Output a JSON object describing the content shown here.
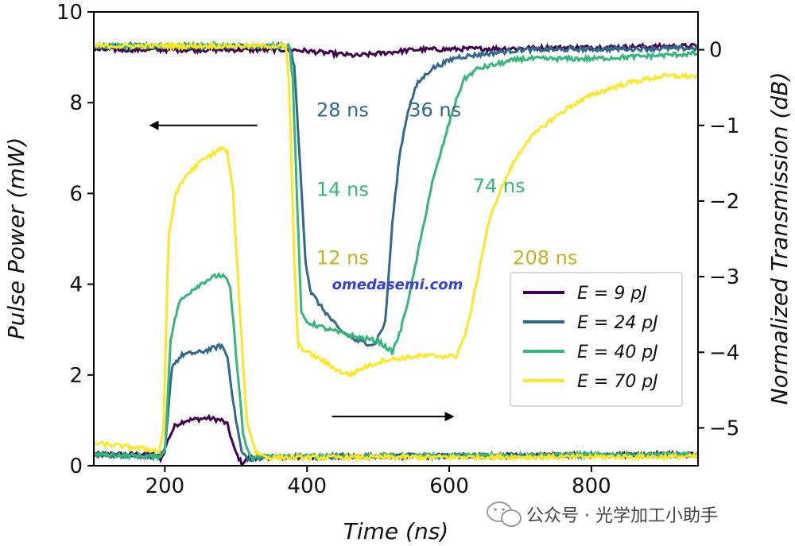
{
  "chart_data": {
    "type": "line",
    "xlabel": "Time (ns)",
    "ylabel_left": "Pulse Power (mW)",
    "ylabel_right": "Normalized Transmission (dB)",
    "xlim": [
      100,
      950
    ],
    "ylim_left": [
      0,
      10
    ],
    "ylim_right": [
      -5.5,
      0.5
    ],
    "x_ticks": [
      200,
      400,
      600,
      800
    ],
    "y_ticks_left": [
      0,
      2,
      4,
      6,
      8,
      10
    ],
    "y_ticks_right": [
      0,
      -1,
      -2,
      -3,
      -4,
      -5
    ],
    "x_tick_labels": [
      "200",
      "400",
      "600",
      "800"
    ],
    "y_tick_labels_left": [
      "0",
      "2",
      "4",
      "6",
      "8",
      "10"
    ],
    "y_tick_labels_right": [
      "0",
      "−1",
      "−2",
      "−3",
      "−4",
      "−5"
    ],
    "series": [
      {
        "name": "E = 9 pJ",
        "color": "#440154",
        "pulse_mW": [
          [
            100,
            0.25
          ],
          [
            185,
            0.25
          ],
          [
            195,
            0.15
          ],
          [
            205,
            0.6
          ],
          [
            215,
            0.9
          ],
          [
            230,
            1.0
          ],
          [
            260,
            1.05
          ],
          [
            280,
            1.0
          ],
          [
            288,
            0.9
          ],
          [
            298,
            0.35
          ],
          [
            308,
            0.05
          ],
          [
            320,
            0.18
          ],
          [
            500,
            0.2
          ],
          [
            700,
            0.22
          ],
          [
            950,
            0.25
          ]
        ],
        "transmission_dB": [
          [
            100,
            0.0
          ],
          [
            380,
            0.0
          ],
          [
            470,
            -0.08
          ],
          [
            550,
            0.0
          ],
          [
            700,
            0.02
          ],
          [
            950,
            0.05
          ]
        ]
      },
      {
        "name": "E = 24 pJ",
        "color": "#31688e",
        "pulse_mW": [
          [
            100,
            0.25
          ],
          [
            190,
            0.2
          ],
          [
            200,
            0.3
          ],
          [
            210,
            2.2
          ],
          [
            225,
            2.45
          ],
          [
            250,
            2.5
          ],
          [
            270,
            2.6
          ],
          [
            280,
            2.65
          ],
          [
            288,
            2.4
          ],
          [
            298,
            1.2
          ],
          [
            308,
            0.3
          ],
          [
            320,
            0.1
          ],
          [
            340,
            0.2
          ],
          [
            950,
            0.25
          ]
        ],
        "transmission_dB": [
          [
            100,
            0.05
          ],
          [
            375,
            0.05
          ],
          [
            382,
            -0.2
          ],
          [
            390,
            -1.5
          ],
          [
            398,
            -2.8
          ],
          [
            405,
            -3.2
          ],
          [
            420,
            -3.4
          ],
          [
            445,
            -3.7
          ],
          [
            470,
            -3.85
          ],
          [
            495,
            -3.9
          ],
          [
            510,
            -3.6
          ],
          [
            520,
            -2.3
          ],
          [
            530,
            -1.4
          ],
          [
            542,
            -0.8
          ],
          [
            555,
            -0.45
          ],
          [
            575,
            -0.25
          ],
          [
            610,
            -0.1
          ],
          [
            700,
            0.0
          ],
          [
            950,
            0.02
          ]
        ]
      },
      {
        "name": "E = 40 pJ",
        "color": "#35b779",
        "pulse_mW": [
          [
            100,
            0.25
          ],
          [
            190,
            0.2
          ],
          [
            200,
            0.3
          ],
          [
            208,
            2.8
          ],
          [
            220,
            3.6
          ],
          [
            240,
            3.9
          ],
          [
            260,
            4.1
          ],
          [
            275,
            4.2
          ],
          [
            285,
            4.15
          ],
          [
            292,
            3.9
          ],
          [
            300,
            2.5
          ],
          [
            310,
            0.7
          ],
          [
            320,
            0.15
          ],
          [
            330,
            0.2
          ],
          [
            950,
            0.25
          ]
        ],
        "transmission_dB": [
          [
            100,
            0.05
          ],
          [
            375,
            0.05
          ],
          [
            380,
            -0.4
          ],
          [
            386,
            -2.0
          ],
          [
            392,
            -3.5
          ],
          [
            400,
            -3.6
          ],
          [
            430,
            -3.7
          ],
          [
            470,
            -3.8
          ],
          [
            500,
            -3.85
          ],
          [
            520,
            -4.0
          ],
          [
            532,
            -3.7
          ],
          [
            545,
            -3.2
          ],
          [
            560,
            -2.5
          ],
          [
            575,
            -1.8
          ],
          [
            590,
            -1.3
          ],
          [
            605,
            -0.8
          ],
          [
            620,
            -0.4
          ],
          [
            640,
            -0.25
          ],
          [
            700,
            -0.12
          ],
          [
            800,
            -0.12
          ],
          [
            950,
            -0.05
          ]
        ]
      },
      {
        "name": "E = 70 pJ",
        "color": "#fde725",
        "pulse_mW": [
          [
            100,
            0.5
          ],
          [
            185,
            0.35
          ],
          [
            192,
            0.3
          ],
          [
            198,
            0.8
          ],
          [
            205,
            5.0
          ],
          [
            215,
            6.0
          ],
          [
            230,
            6.4
          ],
          [
            250,
            6.7
          ],
          [
            270,
            6.9
          ],
          [
            280,
            7.0
          ],
          [
            288,
            6.9
          ],
          [
            296,
            6.0
          ],
          [
            305,
            3.5
          ],
          [
            315,
            1.0
          ],
          [
            328,
            0.3
          ],
          [
            345,
            0.18
          ],
          [
            950,
            0.2
          ]
        ],
        "transmission_dB": [
          [
            100,
            0.05
          ],
          [
            370,
            0.05
          ],
          [
            375,
            -0.5
          ],
          [
            381,
            -2.5
          ],
          [
            387,
            -3.9
          ],
          [
            400,
            -4.0
          ],
          [
            420,
            -4.1
          ],
          [
            445,
            -4.25
          ],
          [
            460,
            -4.3
          ],
          [
            480,
            -4.2
          ],
          [
            510,
            -4.1
          ],
          [
            560,
            -4.05
          ],
          [
            610,
            -4.05
          ],
          [
            625,
            -3.7
          ],
          [
            640,
            -3.0
          ],
          [
            655,
            -2.3
          ],
          [
            670,
            -1.9
          ],
          [
            690,
            -1.5
          ],
          [
            710,
            -1.2
          ],
          [
            740,
            -0.95
          ],
          [
            770,
            -0.75
          ],
          [
            800,
            -0.6
          ],
          [
            830,
            -0.5
          ],
          [
            860,
            -0.42
          ],
          [
            900,
            -0.35
          ],
          [
            950,
            -0.35
          ]
        ]
      }
    ],
    "annotations": [
      {
        "text": "28 ns",
        "color": "#31688e",
        "x": 450,
        "y_dB": -0.8
      },
      {
        "text": "36 ns",
        "color": "#31688e",
        "x": 580,
        "y_dB": -0.8
      },
      {
        "text": "14 ns",
        "color": "#35b779",
        "x": 450,
        "y_dB": -1.85
      },
      {
        "text": "74 ns",
        "color": "#35b779",
        "x": 670,
        "y_dB": -1.8
      },
      {
        "text": "12 ns",
        "color": "#c9b01d",
        "x": 450,
        "y_dB": -2.75
      },
      {
        "text": "208 ns",
        "color": "#c9b01d",
        "x": 735,
        "y_dB": -2.75
      }
    ],
    "arrows": [
      {
        "name": "left-axis-arrow",
        "from": [
          330,
          7.5
        ],
        "to": [
          180,
          7.5
        ],
        "axis": "left"
      },
      {
        "name": "right-axis-arrow",
        "from": [
          435,
          -4.85
        ],
        "to": [
          605,
          -4.85
        ],
        "axis": "right"
      }
    ],
    "legend": {
      "position": "lower-right",
      "entries": [
        "E = 9 pJ",
        "E = 24 pJ",
        "E = 40 pJ",
        "E = 70 pJ"
      ]
    },
    "watermark": "omedasemi.com"
  },
  "footer": {
    "wechat_label": "公众号 · 光学加工小助手"
  }
}
